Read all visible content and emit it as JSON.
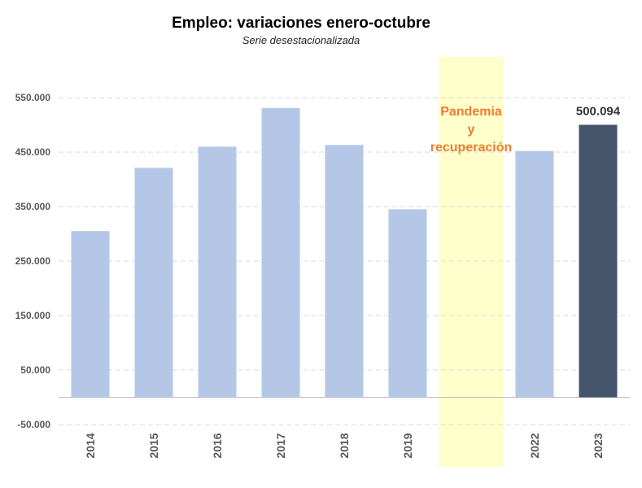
{
  "title": "Empleo: variaciones enero-octubre",
  "subtitle": "Serie desestacionalizada",
  "chart_data": {
    "type": "bar",
    "categories": [
      "2014",
      "2015",
      "2016",
      "2017",
      "2018",
      "2019",
      "",
      "2022",
      "2023"
    ],
    "values": [
      305000,
      421000,
      460000,
      531000,
      463000,
      345000,
      null,
      452000,
      500094
    ],
    "ylim": [
      -50000,
      550000
    ],
    "yticks": [
      "550.000",
      "450.000",
      "350.000",
      "250.000",
      "150.000",
      "50.000",
      "-50.000"
    ],
    "ytick_values": [
      550000,
      450000,
      350000,
      250000,
      150000,
      50000,
      -50000
    ],
    "data_labels": {
      "2023": "500.094"
    },
    "annotation_band": {
      "category": "",
      "lines": [
        "Pandemia",
        "y",
        "recuperación"
      ]
    },
    "grid": true,
    "colors": {
      "bar": "#B4C7E7",
      "highlight_bar": "#44546A",
      "band": "#FFFFCC",
      "band_text": "#ED7D31",
      "grid": "#D9D9D9"
    }
  }
}
